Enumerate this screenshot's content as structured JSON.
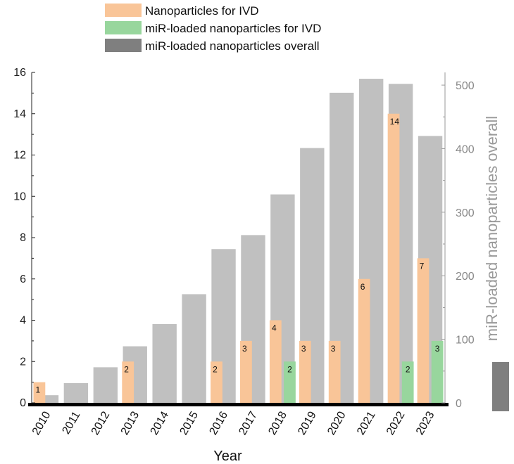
{
  "chart_data": {
    "type": "bar",
    "categories": [
      "2010",
      "2011",
      "2012",
      "2013",
      "2014",
      "2015",
      "2016",
      "2017",
      "2018",
      "2019",
      "2020",
      "2021",
      "2022",
      "2023"
    ],
    "series": [
      {
        "name": "Nanoparticles for IVD",
        "axis": "left",
        "color": "#f9c598",
        "values": [
          1,
          0,
          0,
          2,
          0,
          0,
          2,
          3,
          4,
          3,
          3,
          6,
          14,
          7
        ],
        "labels": [
          "1",
          "",
          "",
          "2",
          "",
          "",
          "2",
          "3",
          "4",
          "3",
          "3",
          "6",
          "14",
          "7"
        ]
      },
      {
        "name": "miR-loaded nanoparticles for IVD",
        "axis": "left",
        "color": "#98d69d",
        "values": [
          0,
          0,
          0,
          0,
          0,
          0,
          0,
          0,
          2,
          0,
          0,
          0,
          2,
          3
        ],
        "labels": [
          "",
          "",
          "",
          "",
          "",
          "",
          "",
          "",
          "2",
          "",
          "",
          "",
          "2",
          "3"
        ]
      },
      {
        "name": "miR-loaded nanoparticles overall",
        "axis": "right",
        "color": "#c0c0c0",
        "values": [
          12,
          31,
          56,
          89,
          124,
          171,
          242,
          264,
          328,
          401,
          488,
          510,
          502,
          420
        ]
      }
    ],
    "legend_swatch_color_overall": "#7f7f7f",
    "xlabel": "Year",
    "ylabel": "",
    "ylabel_right": "miR-loaded nanoparticles overall",
    "ylim": [
      0,
      16
    ],
    "ylim_right": [
      0,
      520
    ],
    "yticks": [
      "0",
      "2",
      "4",
      "6",
      "8",
      "10",
      "12",
      "14",
      "16"
    ],
    "yticks_right": [
      "0",
      "100",
      "200",
      "300",
      "400",
      "500"
    ],
    "legend_position": "top"
  }
}
